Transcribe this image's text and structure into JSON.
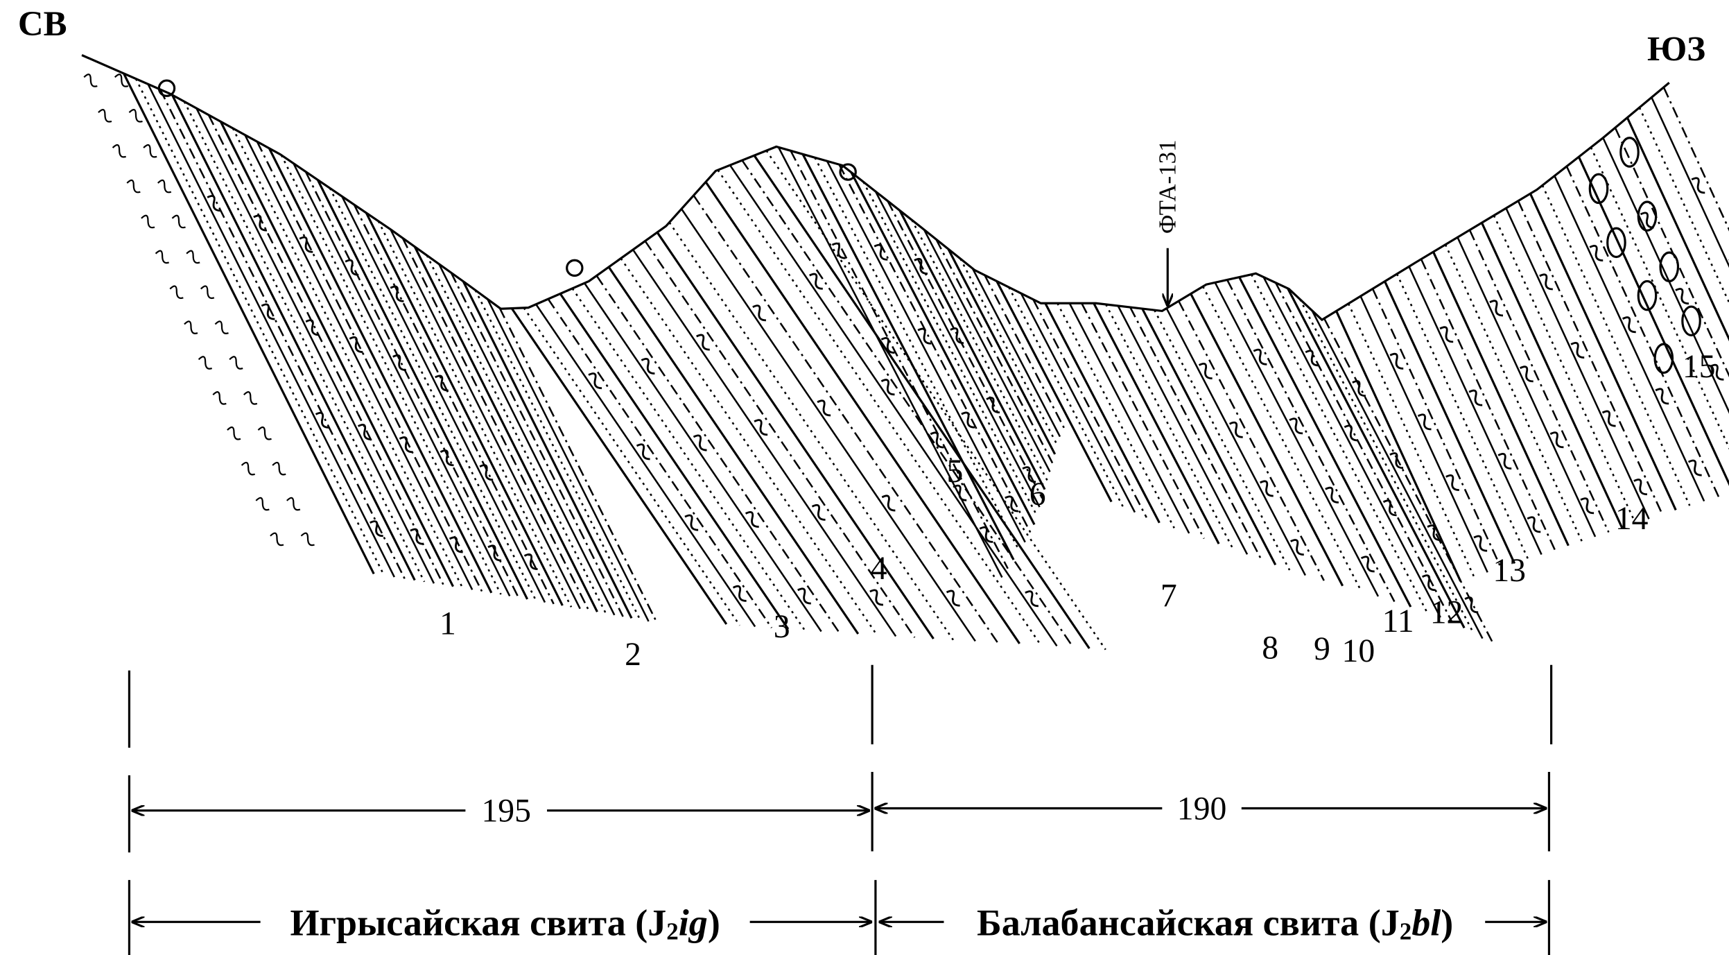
{
  "directions": {
    "left": "СВ",
    "right": "ЮЗ"
  },
  "borehole": "ФТА-131",
  "layers": [
    "1",
    "2",
    "3",
    "4",
    "5",
    "6",
    "7",
    "8",
    "9",
    "10",
    "11",
    "12",
    "13",
    "14",
    "15"
  ],
  "distances": [
    195,
    190
  ],
  "formations": [
    {
      "name": "Игрысайская свита",
      "open": "(J",
      "sub": "2",
      "code": "ig",
      "close": ")"
    },
    {
      "name": "Балабансайская свита",
      "open": "(J",
      "sub": "2",
      "code": "bl",
      "close": ")"
    }
  ]
}
